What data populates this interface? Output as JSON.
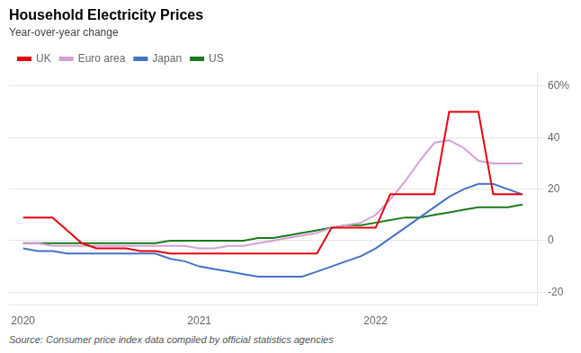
{
  "chart_data": {
    "type": "line",
    "title": "Household Electricity Prices",
    "subtitle": "Year-over-year change",
    "source": "Source: Consumer price index data compiled by official statistics agencies",
    "x": [
      2020.0,
      2020.083,
      2020.167,
      2020.25,
      2020.333,
      2020.417,
      2020.5,
      2020.583,
      2020.667,
      2020.75,
      2020.833,
      2020.917,
      2021.0,
      2021.083,
      2021.167,
      2021.25,
      2021.333,
      2021.417,
      2021.5,
      2021.583,
      2021.667,
      2021.75,
      2021.833,
      2021.917,
      2022.0,
      2022.083,
      2022.167,
      2022.25,
      2022.333,
      2022.417,
      2022.5,
      2022.583,
      2022.667,
      2022.75,
      2022.833
    ],
    "series": [
      {
        "name": "UK",
        "color": "#e8000d",
        "values": [
          9,
          9,
          9,
          4,
          -1,
          -3,
          -3,
          -3,
          -4,
          -4,
          -5,
          -5,
          -5,
          -5,
          -5,
          -5,
          -5,
          -5,
          -5,
          -5,
          -5,
          5,
          5,
          5,
          5,
          18,
          18,
          18,
          18,
          50,
          50,
          50,
          18,
          18,
          18
        ]
      },
      {
        "name": "Euro area",
        "color": "#d4a0d4",
        "values": [
          -1,
          -1,
          -2,
          -2,
          -2,
          -2,
          -2,
          -2,
          -2,
          -2,
          -2,
          -2,
          -3,
          -3,
          -2,
          -2,
          -1,
          0,
          1,
          2,
          3,
          5,
          6,
          7,
          10,
          16,
          23,
          31,
          38,
          39,
          36,
          31,
          30,
          30,
          30
        ]
      },
      {
        "name": "Japan",
        "color": "#4472c4",
        "values": [
          -3,
          -4,
          -4,
          -5,
          -5,
          -5,
          -5,
          -5,
          -5,
          -5,
          -7,
          -8,
          -10,
          -11,
          -12,
          -13,
          -14,
          -14,
          -14,
          -14,
          -12,
          -10,
          -8,
          -6,
          -3,
          1,
          5,
          9,
          13,
          17,
          20,
          22,
          22,
          20,
          18
        ]
      },
      {
        "name": "US",
        "color": "#1a7a1a",
        "values": [
          -1,
          -1,
          -1,
          -1,
          -1,
          -1,
          -1,
          -1,
          -1,
          -1,
          0,
          0,
          0,
          0,
          0,
          0,
          1,
          1,
          2,
          3,
          4,
          5,
          6,
          6,
          7,
          8,
          9,
          9,
          10,
          11,
          12,
          13,
          13,
          13,
          14
        ]
      }
    ],
    "xlim": [
      2019.92,
      2022.92
    ],
    "xticks": [
      2020,
      2021,
      2022
    ],
    "ylim": [
      -25,
      65
    ],
    "yticks": [
      -20,
      0,
      20,
      40,
      {
        "value": 60,
        "label": "60%"
      }
    ],
    "grid": "y",
    "legend": "upper left"
  }
}
